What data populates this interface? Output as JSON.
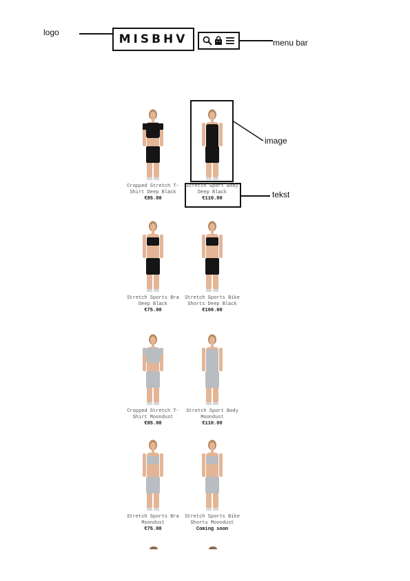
{
  "annotations": {
    "logo": "logo",
    "menu_bar": "menu bar",
    "image": "image",
    "text": "tekst"
  },
  "header": {
    "logo_text": "MISBHV",
    "icons": [
      "search-icon",
      "bag-icon",
      "hamburger-menu-icon"
    ]
  },
  "products": [
    {
      "name": "Cropped Stretch T-Shirt Deep Black",
      "price": "€85.00",
      "garment": "black-tee"
    },
    {
      "name": "Stretch Sport Body Deep Black",
      "price": "€110.00",
      "garment": "black-body"
    },
    {
      "name": "Stretch Sports Bra Deep Black",
      "price": "€75.00",
      "garment": "black-bra"
    },
    {
      "name": "Stretch Sports Bike Shorts Deep Black",
      "price": "€100.00",
      "garment": "black-bra"
    },
    {
      "name": "Cropped Stretch T-Shirt Moondust",
      "price": "€85.00",
      "garment": "silver-tee"
    },
    {
      "name": "Stretch Sport Body Moondust",
      "price": "€110.00",
      "garment": "silver-body"
    },
    {
      "name": "Stretch Sports Bra Moondust",
      "price": "€75.00",
      "garment": "silver-bra"
    },
    {
      "name": "Stretch Sports Bike Shorts Moondust",
      "price": "Coming soon",
      "garment": "silver-bra"
    }
  ],
  "colors": {
    "black_garment": "#151515",
    "silver_garment": "#b9bcc0",
    "skin": "#e3b596",
    "hair": "#b3875a"
  }
}
